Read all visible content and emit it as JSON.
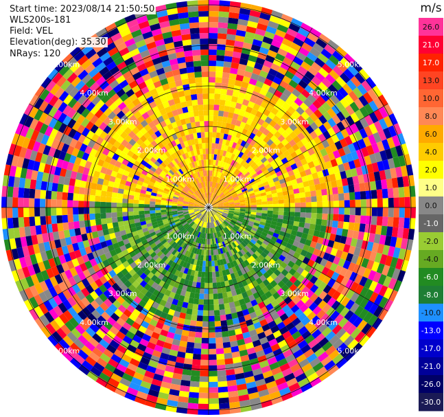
{
  "info": {
    "start_time": "Start time: 2023/08/14 21:50:50",
    "instrument": "WLS200s-181",
    "field": "Field: VEL",
    "elevation": "Elevation(deg): 35.30",
    "nrays": "NRays: 120"
  },
  "chart_data": {
    "type": "heatmap",
    "projection": "polar-ppi",
    "grid": true,
    "range_rings_km": [
      {
        "label": "1.00km"
      },
      {
        "label": "2.00km"
      },
      {
        "label": "3.00km"
      },
      {
        "label": "4.00km"
      },
      {
        "label": "5.00km"
      }
    ],
    "spokes_deg": [
      0,
      30,
      60,
      90,
      120,
      150,
      180,
      210,
      240,
      270,
      300,
      330
    ],
    "colorbar": {
      "unit": "m/s",
      "placement": "right",
      "levels": [
        {
          "label": "26.0",
          "color": "#ff3399"
        },
        {
          "label": "21.0",
          "color": "#ff0033"
        },
        {
          "label": "17.0",
          "color": "#ff2200"
        },
        {
          "label": "13.0",
          "color": "#ff4422"
        },
        {
          "label": "10.0",
          "color": "#ff6633"
        },
        {
          "label": "8.0",
          "color": "#ff8855"
        },
        {
          "label": "6.0",
          "color": "#ffaa00"
        },
        {
          "label": "4.0",
          "color": "#ffcc00"
        },
        {
          "label": "2.0",
          "color": "#ffff00"
        },
        {
          "label": "1.0",
          "color": "#ffff88"
        },
        {
          "label": "0.0",
          "color": "#888888"
        },
        {
          "label": "-1.0",
          "color": "#666666"
        },
        {
          "label": "-2.0",
          "color": "#99cc33"
        },
        {
          "label": "-4.0",
          "color": "#66aa22"
        },
        {
          "label": "-6.0",
          "color": "#228b22"
        },
        {
          "label": "-8.0",
          "color": "#1e7e34"
        },
        {
          "label": "-10.0",
          "color": "#1e90ff"
        },
        {
          "label": "-13.0",
          "color": "#0000ff"
        },
        {
          "label": "-17.0",
          "color": "#0000cc"
        },
        {
          "label": "-21.0",
          "color": "#000099"
        },
        {
          "label": "-26.0",
          "color": "#000066"
        },
        {
          "label": "-30.0",
          "color": "#1a1a55"
        }
      ]
    }
  }
}
